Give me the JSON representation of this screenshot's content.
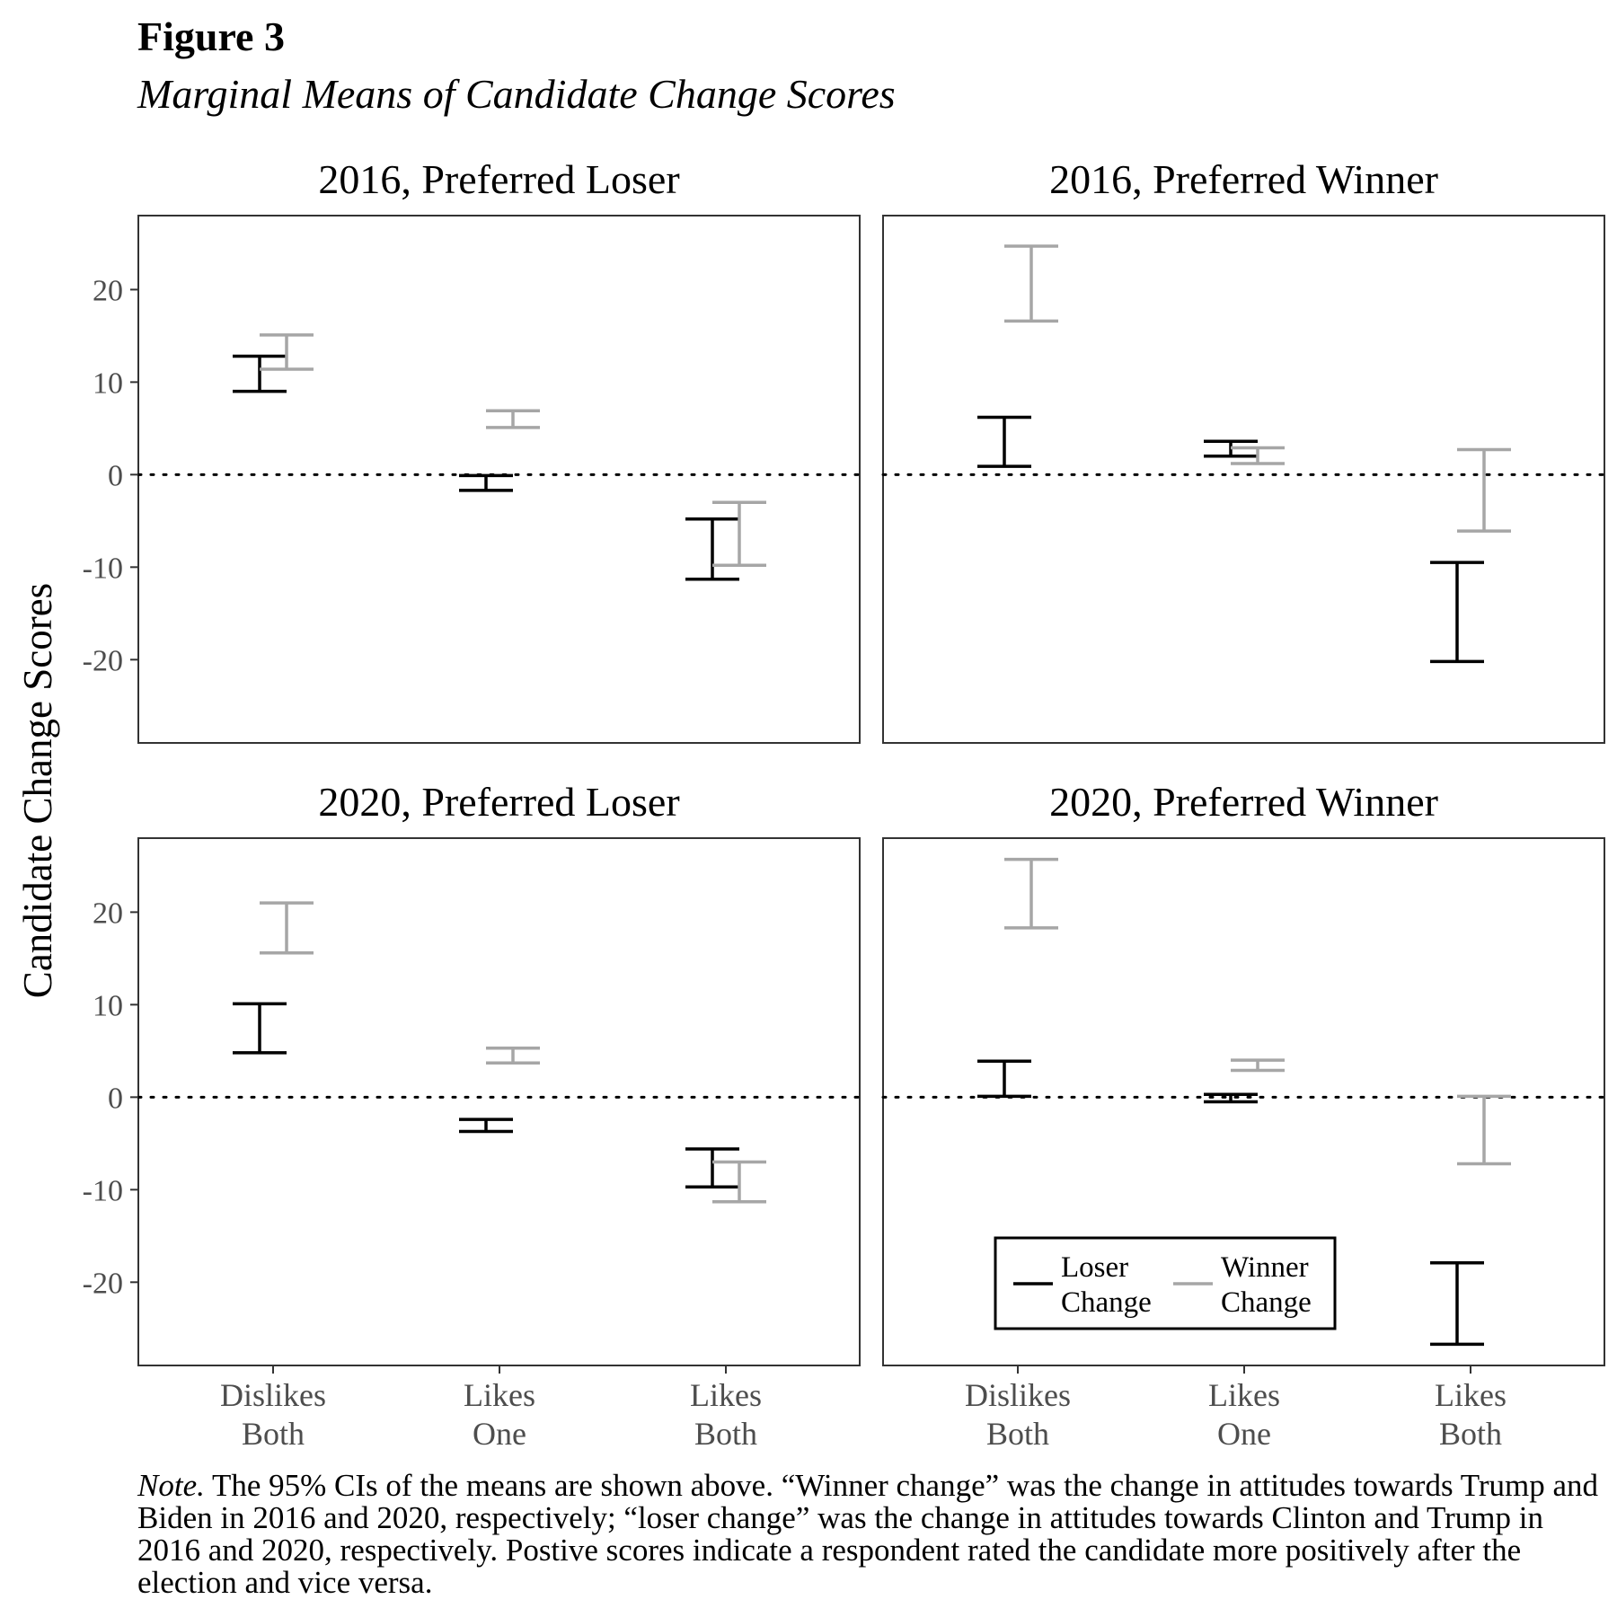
{
  "figure": {
    "label": "Figure 3",
    "title": "Marginal Means of Candidate Change Scores",
    "note_label": "Note.",
    "note_text": "The 95% CIs of the means are shown above. “Winner change” was the change in attitudes towards Trump and Biden in 2016 and 2020, respectively; “loser change” was the change in attitudes towards Clinton and Trump in 2016 and 2020, respectively. Postive scores indicate a respondent rated the candidate more positively after the election and vice versa."
  },
  "chart_data": {
    "type": "errorbar",
    "ylabel": "Candidate Change Scores",
    "xlabel": "",
    "ylim": [
      -29,
      28
    ],
    "yticks": [
      20,
      10,
      0,
      -10,
      -20
    ],
    "ytick_labels": [
      "20",
      "10",
      "0",
      "-10",
      "-20"
    ],
    "categories": [
      "Dislikes\nBoth",
      "Likes\nOne",
      "Likes\nBoth"
    ],
    "reference_line": 0,
    "grid": false,
    "legend": {
      "position": "bottom-right of 2020, Preferred Winner panel",
      "entries": [
        {
          "label": "Loser\nChange",
          "color": "#000000"
        },
        {
          "label": "Winner\nChange",
          "color": "#a6a6a6"
        }
      ]
    },
    "series_colors": {
      "loser": "#000000",
      "winner": "#a6a6a6"
    },
    "panels": [
      {
        "title": "2016, Preferred Loser",
        "loser": [
          [
            9.0,
            12.8
          ],
          [
            -1.7,
            -0.1
          ],
          [
            -11.3,
            -4.8
          ]
        ],
        "winner": [
          [
            11.4,
            15.1
          ],
          [
            5.1,
            6.9
          ],
          [
            -9.8,
            -3.0
          ]
        ]
      },
      {
        "title": "2016, Preferred Winner",
        "loser": [
          [
            0.9,
            6.2
          ],
          [
            2.0,
            3.6
          ],
          [
            -20.2,
            -9.5
          ]
        ],
        "winner": [
          [
            16.6,
            24.7
          ],
          [
            1.2,
            2.9
          ],
          [
            -6.1,
            2.7
          ]
        ]
      },
      {
        "title": "2020, Preferred Loser",
        "loser": [
          [
            4.8,
            10.1
          ],
          [
            -3.7,
            -2.4
          ],
          [
            -9.7,
            -5.6
          ]
        ],
        "winner": [
          [
            15.6,
            21.0
          ],
          [
            3.7,
            5.3
          ],
          [
            -11.3,
            -7.0
          ]
        ]
      },
      {
        "title": "2020, Preferred Winner",
        "loser": [
          [
            0.1,
            3.9
          ],
          [
            -0.5,
            0.3
          ],
          [
            -26.7,
            -17.9
          ]
        ],
        "winner": [
          [
            18.3,
            25.7
          ],
          [
            2.9,
            4.0
          ],
          [
            -7.2,
            0.1
          ]
        ]
      }
    ]
  }
}
